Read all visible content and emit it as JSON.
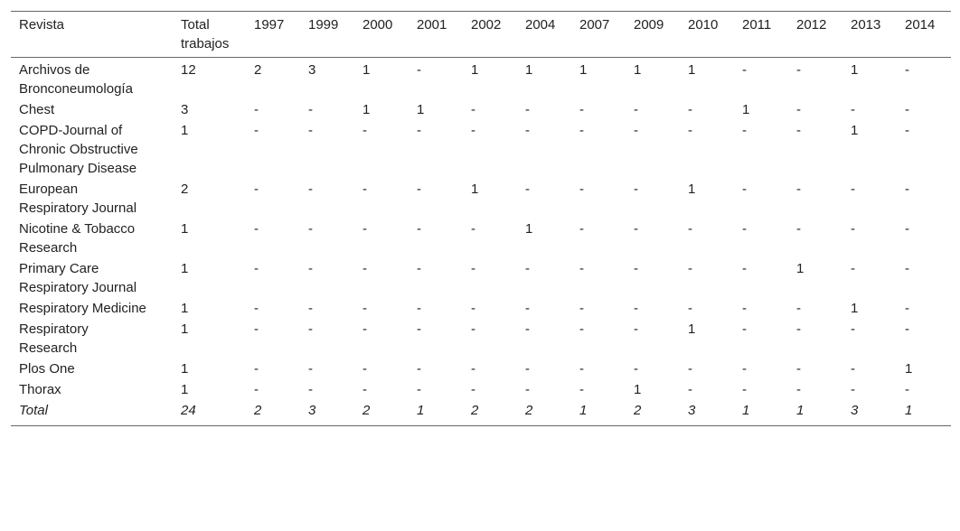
{
  "table": {
    "header": [
      "Revista",
      "Total trabajos",
      "1997",
      "1999",
      "2000",
      "2001",
      "2002",
      "2004",
      "2007",
      "2009",
      "2010",
      "2011",
      "2012",
      "2013",
      "2014"
    ],
    "rows": [
      [
        "Archivos de Bronconeumología",
        "12",
        "2",
        "3",
        "1",
        "-",
        "1",
        "1",
        "1",
        "1",
        "1",
        "-",
        "-",
        "1",
        "-"
      ],
      [
        "Chest",
        "3",
        "-",
        "-",
        "1",
        "1",
        "-",
        "-",
        "-",
        "-",
        "-",
        "1",
        "-",
        "-",
        "-"
      ],
      [
        "COPD-Journal of Chronic Obstructive Pulmonary Disease",
        "1",
        "-",
        "-",
        "-",
        "-",
        "-",
        "-",
        "-",
        "-",
        "-",
        "-",
        "-",
        "1",
        "-"
      ],
      [
        "European Respiratory Journal",
        "2",
        "-",
        "-",
        "-",
        "-",
        "1",
        "-",
        "-",
        "-",
        "1",
        "-",
        "-",
        "-",
        "-"
      ],
      [
        "Nicotine & Tobacco Research",
        "1",
        "-",
        "-",
        "-",
        "-",
        "-",
        "1",
        "-",
        "-",
        "-",
        "-",
        "-",
        "-",
        "-"
      ],
      [
        "Primary Care Respiratory Journal",
        "1",
        "-",
        "-",
        "-",
        "-",
        "-",
        "-",
        "-",
        "-",
        "-",
        "-",
        "1",
        "-",
        "-"
      ],
      [
        "Respiratory Medicine",
        "1",
        "-",
        "-",
        "-",
        "-",
        "-",
        "-",
        "-",
        "-",
        "-",
        "-",
        "-",
        "1",
        "-"
      ],
      [
        "Respiratory Research",
        "1",
        "-",
        "-",
        "-",
        "-",
        "-",
        "-",
        "-",
        "-",
        "1",
        "-",
        "-",
        "-",
        "-"
      ],
      [
        "Plos One",
        "1",
        "-",
        "-",
        "-",
        "-",
        "-",
        "-",
        "-",
        "-",
        "-",
        "-",
        "-",
        "-",
        "1"
      ],
      [
        "Thorax",
        "1",
        "-",
        "-",
        "-",
        "-",
        "-",
        "-",
        "-",
        "1",
        "-",
        "-",
        "-",
        "-",
        "-"
      ]
    ],
    "total": [
      "Total",
      "24",
      "2",
      "3",
      "2",
      "1",
      "2",
      "2",
      "1",
      "2",
      "3",
      "1",
      "1",
      "3",
      "1"
    ]
  }
}
